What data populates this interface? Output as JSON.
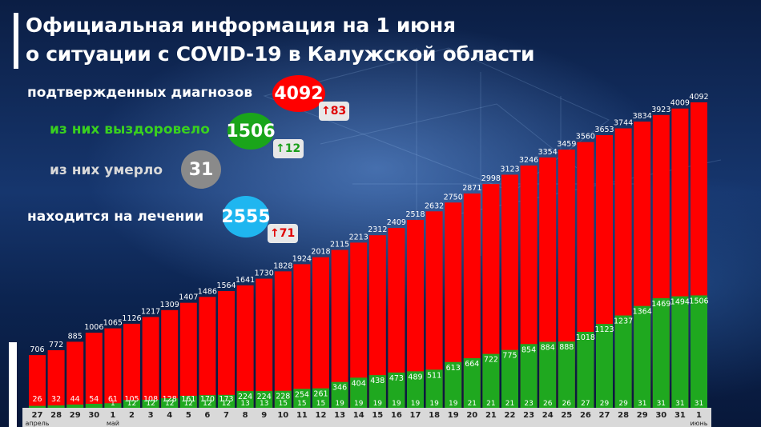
{
  "title_line1": "Официальная информация на 1 июня",
  "title_line2": "о ситуации с COVID-19 в Калужской области",
  "stats": {
    "confirmed": {
      "label": "подтвержденных диагнозов",
      "value": "4092",
      "delta": "83",
      "color": "#ff0000"
    },
    "recovered": {
      "label": "из них выздоровело",
      "value": "1506",
      "delta": "12",
      "color": "#1aa51a"
    },
    "died": {
      "label": "из них умерло",
      "value": "31",
      "color": "#8a8a8a"
    },
    "treatment": {
      "label": "находится на лечении",
      "value": "2555",
      "delta": "71",
      "color": "#1fb6f0"
    }
  },
  "colors": {
    "total": "#ff0000",
    "recovered": "#1fa81f",
    "died": "#8a8a8a",
    "axis_band": "#d9d9d9"
  },
  "chart_data": {
    "type": "bar",
    "categories": [
      "27",
      "28",
      "29",
      "30",
      "1",
      "2",
      "3",
      "4",
      "5",
      "6",
      "7",
      "8",
      "9",
      "10",
      "11",
      "12",
      "13",
      "14",
      "15",
      "16",
      "17",
      "18",
      "19",
      "20",
      "21",
      "22",
      "23",
      "24",
      "25",
      "26",
      "27",
      "28",
      "29",
      "30",
      "31",
      "1"
    ],
    "month_labels": [
      {
        "index": 0,
        "text": "апрель"
      },
      {
        "index": 4,
        "text": "май"
      },
      {
        "index": 35,
        "text": "июнь"
      }
    ],
    "series": [
      {
        "values": [
          706,
          772,
          885,
          1006,
          1065,
          1126,
          1217,
          1309,
          1407,
          1486,
          1564,
          1641,
          1730,
          1828,
          1924,
          2018,
          2115,
          2213,
          2312,
          2409,
          2518,
          2632,
          2750,
          2871,
          2998,
          3123,
          3246,
          3354,
          3459,
          3560,
          3653,
          3744,
          3834,
          3923,
          4009,
          4092
        ]
      },
      {
        "values": [
          26,
          32,
          44,
          54,
          61,
          105,
          108,
          128,
          161,
          170,
          173,
          224,
          224,
          228,
          254,
          261,
          346,
          404,
          438,
          473,
          489,
          511,
          613,
          664,
          722,
          775,
          854,
          884,
          888,
          1018,
          1123,
          1237,
          1364,
          1469,
          1494,
          1506
        ]
      },
      {
        "values": [
          null,
          null,
          null,
          null,
          1,
          12,
          12,
          12,
          12,
          12,
          12,
          13,
          13,
          15,
          15,
          15,
          19,
          19,
          19,
          19,
          19,
          19,
          19,
          21,
          21,
          21,
          23,
          26,
          26,
          27,
          29,
          29,
          31,
          31,
          31,
          31
        ]
      }
    ],
    "ylim": [
      0,
      4400
    ]
  }
}
